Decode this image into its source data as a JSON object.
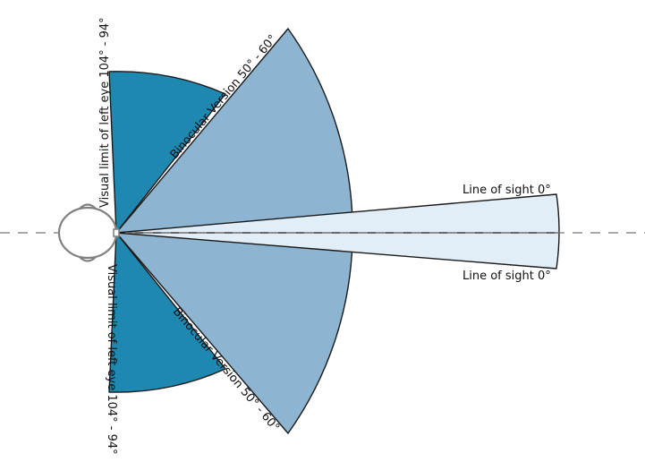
{
  "diagram": {
    "labels": {
      "left_eye_top": "Visual limit of left eye 104° - 94°",
      "left_eye_bottom": "Visual limit of left eye 104° - 94°",
      "binocular_top": "Binocular Version 50° - 60°",
      "binocular_bottom": "Binocular Version 50° - 60°",
      "sight_top": "Line of sight 0°",
      "sight_bottom": "Line of sight 0°"
    },
    "colors": {
      "dark_blue": "#1f88b0",
      "mid_blue": "#8db5d2",
      "light_blue": "#e2eef7",
      "stroke": "#1a1a1a",
      "head": "#808080",
      "axis_dash": "#777777"
    }
  }
}
